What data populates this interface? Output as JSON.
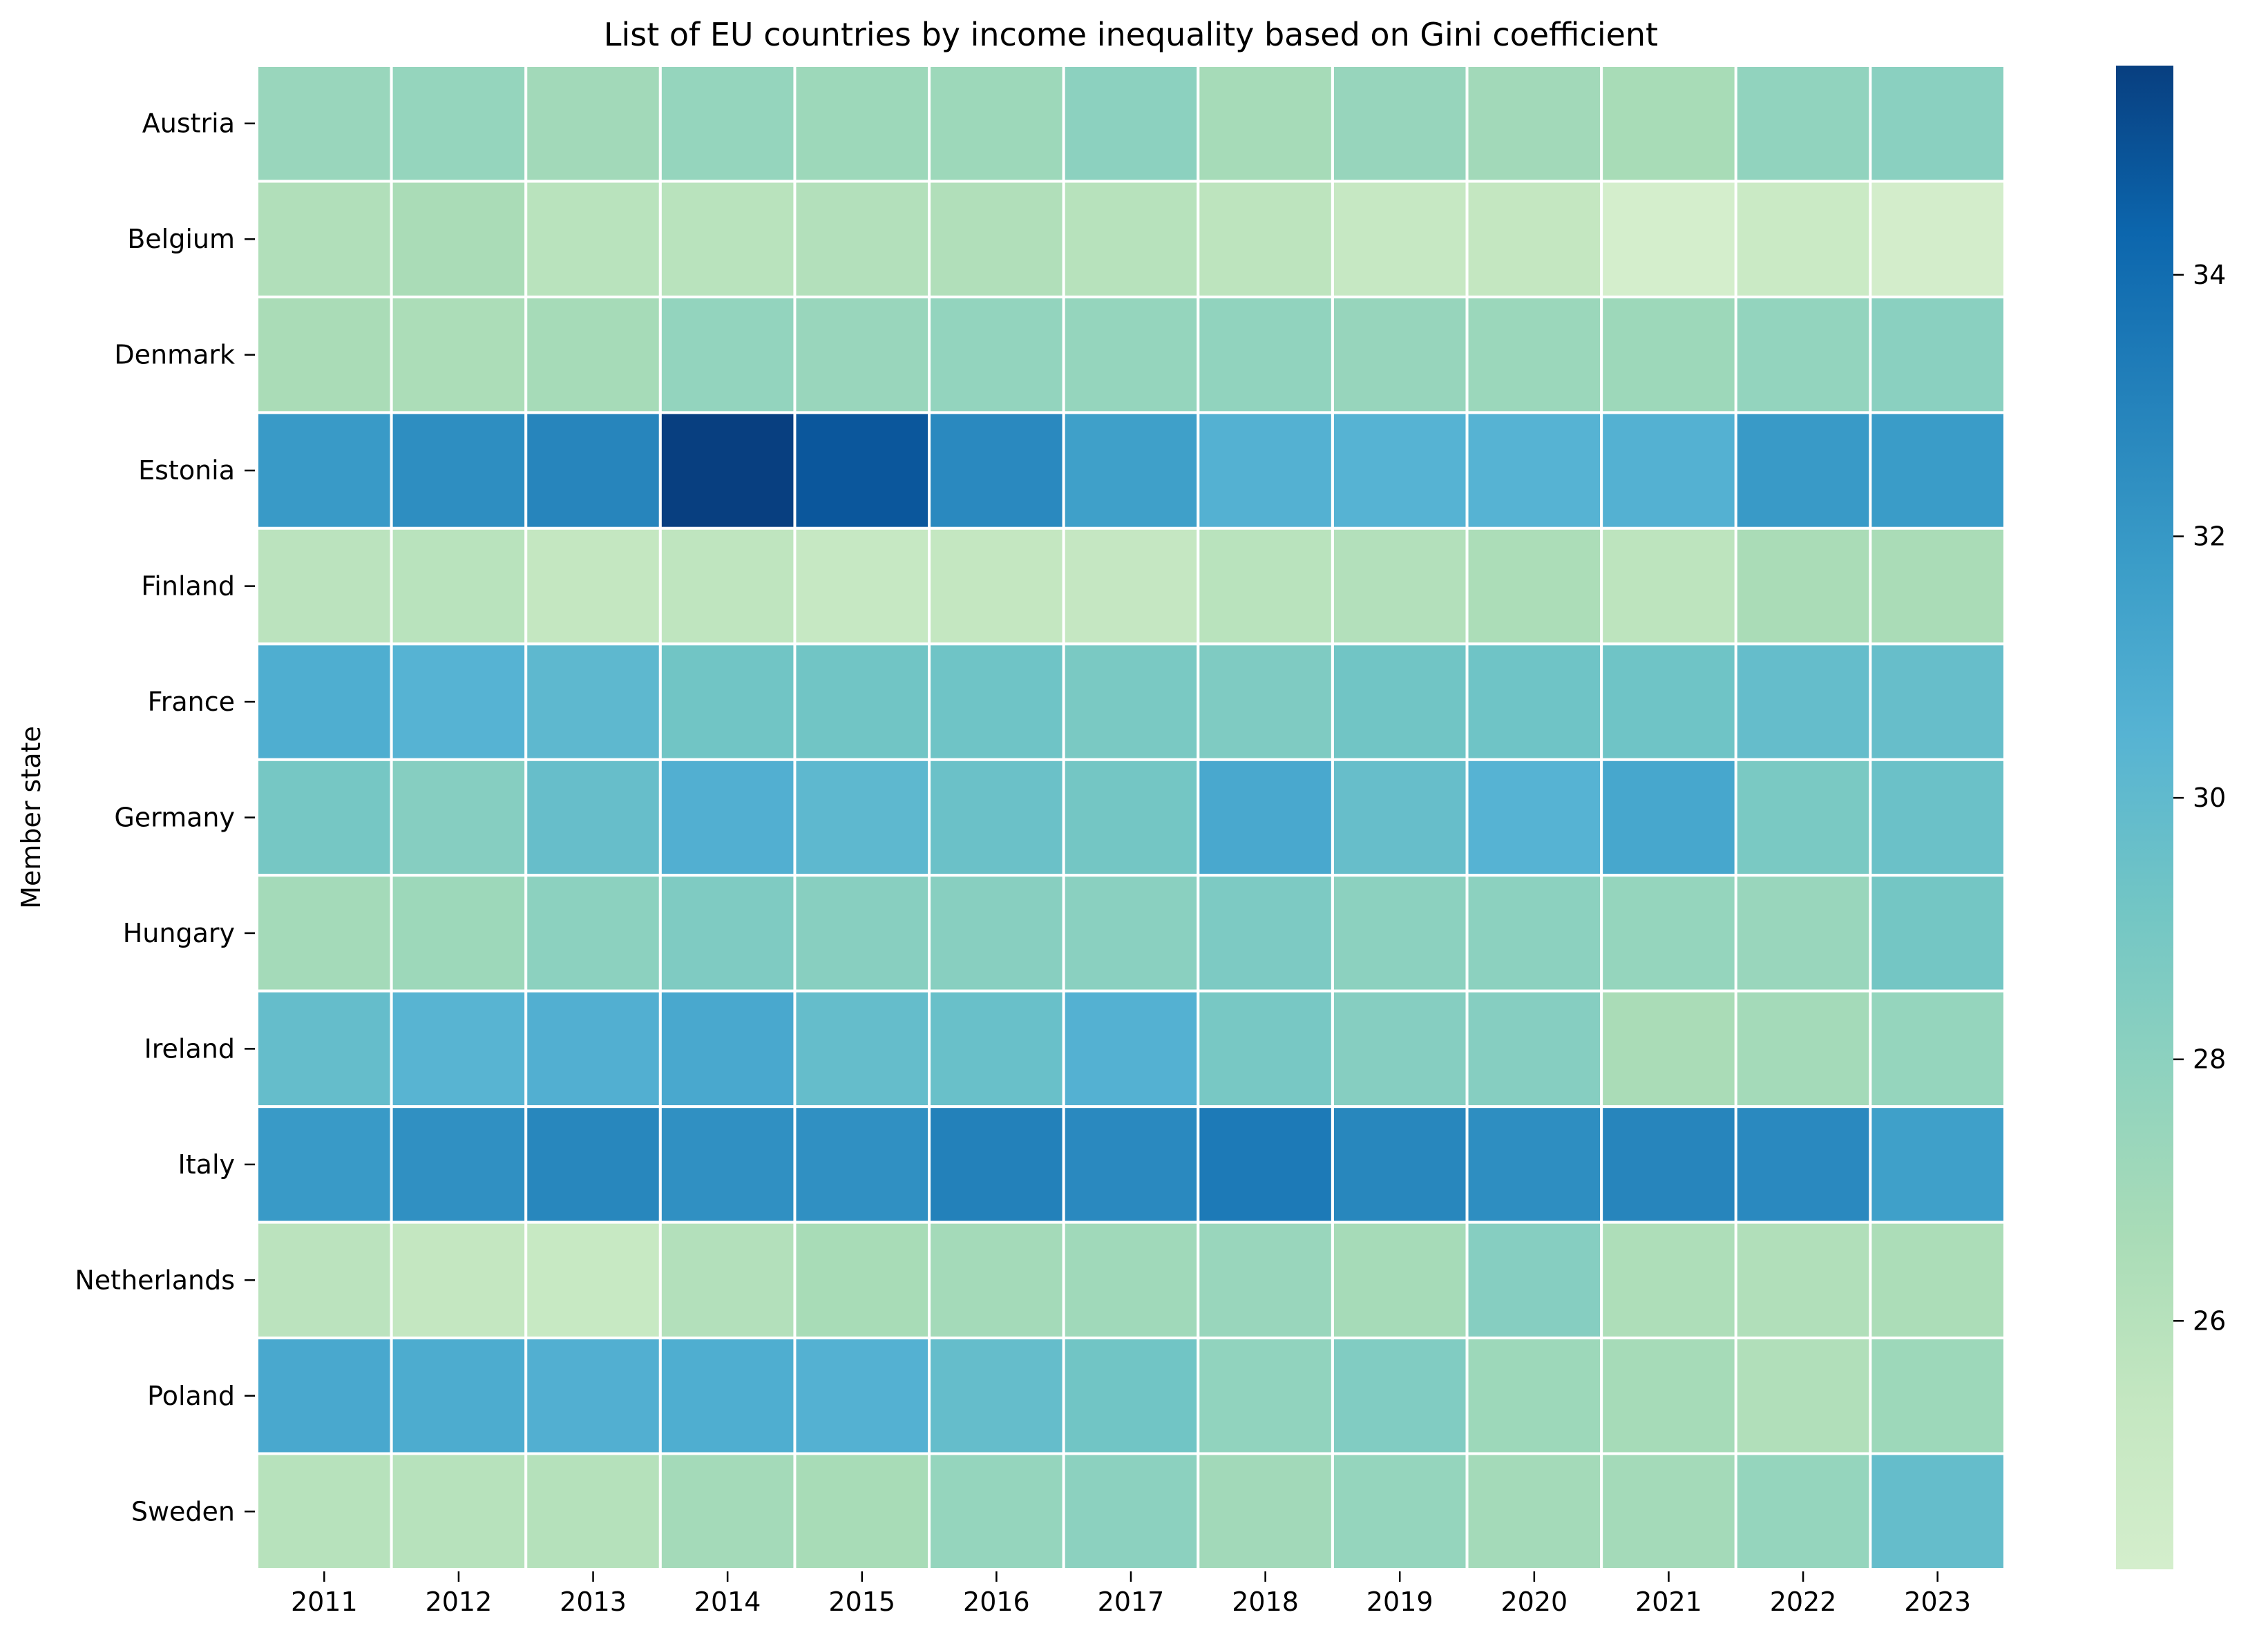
{
  "chart_data": {
    "type": "heatmap",
    "title": "List of EU countries by income inequality based on Gini coefficient",
    "xlabel": "",
    "ylabel": "Member state",
    "x": [
      "2011",
      "2012",
      "2013",
      "2014",
      "2015",
      "2016",
      "2017",
      "2018",
      "2019",
      "2020",
      "2021",
      "2022",
      "2023"
    ],
    "y": [
      "Austria",
      "Belgium",
      "Denmark",
      "Estonia",
      "Finland",
      "France",
      "Germany",
      "Hungary",
      "Ireland",
      "Italy",
      "Netherlands",
      "Poland",
      "Sweden"
    ],
    "values": [
      [
        27.4,
        27.6,
        27.0,
        27.6,
        27.2,
        27.2,
        28.0,
        26.8,
        27.5,
        27.0,
        26.7,
        27.8,
        28.1
      ],
      [
        26.3,
        26.6,
        25.9,
        25.9,
        26.2,
        26.3,
        26.0,
        25.7,
        25.2,
        25.4,
        24.1,
        24.9,
        24.2
      ],
      [
        26.6,
        26.5,
        26.8,
        27.7,
        27.4,
        27.7,
        27.6,
        27.8,
        27.5,
        27.3,
        27.2,
        27.7,
        28.1
      ],
      [
        31.9,
        32.5,
        32.9,
        35.6,
        34.8,
        32.7,
        31.6,
        30.6,
        30.5,
        30.5,
        30.6,
        31.9,
        31.8
      ],
      [
        25.8,
        25.9,
        25.4,
        25.6,
        25.2,
        25.4,
        25.3,
        25.9,
        26.2,
        26.5,
        25.7,
        26.6,
        26.6
      ],
      [
        30.8,
        30.5,
        30.1,
        29.2,
        29.2,
        29.3,
        28.8,
        28.6,
        29.2,
        29.3,
        29.3,
        29.8,
        29.7
      ],
      [
        29.0,
        28.3,
        29.7,
        30.7,
        30.1,
        29.5,
        29.1,
        31.1,
        29.7,
        30.5,
        31.2,
        28.8,
        29.5
      ],
      [
        26.9,
        27.2,
        28.0,
        28.6,
        28.2,
        28.2,
        28.1,
        28.7,
        28.0,
        28.0,
        27.6,
        27.4,
        29.1
      ],
      [
        29.8,
        30.4,
        30.7,
        31.1,
        29.8,
        29.6,
        30.6,
        28.9,
        28.3,
        28.3,
        26.6,
        26.9,
        27.6
      ],
      [
        31.9,
        32.4,
        32.8,
        32.4,
        32.4,
        33.1,
        32.7,
        33.4,
        32.8,
        32.5,
        32.9,
        32.7,
        31.6
      ],
      [
        25.8,
        25.4,
        25.1,
        26.2,
        26.7,
        26.9,
        27.1,
        27.4,
        26.8,
        28.3,
        26.4,
        26.3,
        26.5
      ],
      [
        31.1,
        30.9,
        30.7,
        30.8,
        30.6,
        29.8,
        29.2,
        27.8,
        28.5,
        27.2,
        26.8,
        26.3,
        27.2
      ],
      [
        26.0,
        26.0,
        26.1,
        26.9,
        26.7,
        27.6,
        28.0,
        27.0,
        27.6,
        26.9,
        26.9,
        27.6,
        29.8
      ]
    ],
    "colorbar": {
      "min": 24.1,
      "max": 35.6,
      "ticks": [
        "26",
        "28",
        "30",
        "32",
        "34"
      ],
      "colormap": "GnBu",
      "colors": [
        "#d4eecc",
        "#c4e7c1",
        "#a9dcb7",
        "#8ed2bf",
        "#71c5c5",
        "#56b3d3",
        "#3b9dc8",
        "#2482bb",
        "#0c66ad",
        "#083f80"
      ]
    },
    "grid": false,
    "cell_border_color": "#ffffff"
  }
}
